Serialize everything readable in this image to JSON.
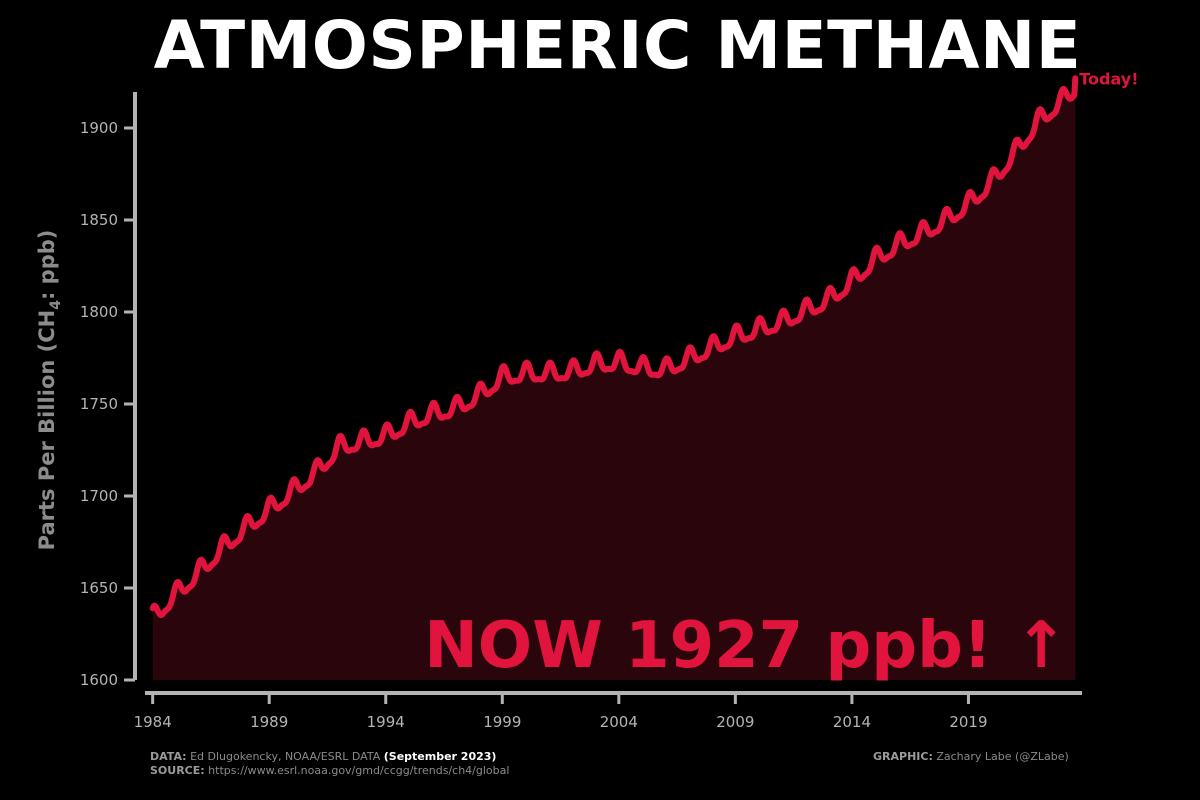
{
  "title": "ATMOSPHERIC METHANE",
  "chart_data": {
    "type": "area",
    "title": "ATMOSPHERIC METHANE",
    "ylabel_main": "Parts Per Billion (CH",
    "ylabel_sub": "4",
    "ylabel_tail": ": ppb)",
    "xlabel": "",
    "xlim": [
      1983.8,
      2023.7
    ],
    "ylim": [
      1600,
      1925
    ],
    "x_ticks": [
      1984,
      1989,
      1994,
      1999,
      2004,
      2009,
      2014,
      2019
    ],
    "y_ticks": [
      1600,
      1650,
      1700,
      1750,
      1800,
      1850,
      1900
    ],
    "grid": false,
    "line_color": "#e0143c",
    "fill_color": "#2a050c",
    "annual_start_values": [
      [
        1984.0,
        1639
      ],
      [
        1985.0,
        1652
      ],
      [
        1986.0,
        1664
      ],
      [
        1987.0,
        1677
      ],
      [
        1988.0,
        1688
      ],
      [
        1989.0,
        1698
      ],
      [
        1990.0,
        1708
      ],
      [
        1991.0,
        1718
      ],
      [
        1992.0,
        1732
      ],
      [
        1993.0,
        1735
      ],
      [
        1994.0,
        1738
      ],
      [
        1995.0,
        1745
      ],
      [
        1996.0,
        1750
      ],
      [
        1997.0,
        1753
      ],
      [
        1998.0,
        1760
      ],
      [
        1999.0,
        1770
      ],
      [
        2000.0,
        1772
      ],
      [
        2001.0,
        1772
      ],
      [
        2002.0,
        1773
      ],
      [
        2003.0,
        1777
      ],
      [
        2004.0,
        1778
      ],
      [
        2005.0,
        1775
      ],
      [
        2006.0,
        1774
      ],
      [
        2007.0,
        1780
      ],
      [
        2008.0,
        1786
      ],
      [
        2009.0,
        1792
      ],
      [
        2010.0,
        1796
      ],
      [
        2011.0,
        1800
      ],
      [
        2012.0,
        1806
      ],
      [
        2013.0,
        1812
      ],
      [
        2014.0,
        1822
      ],
      [
        2015.0,
        1834
      ],
      [
        2016.0,
        1842
      ],
      [
        2017.0,
        1848
      ],
      [
        2018.0,
        1855
      ],
      [
        2019.0,
        1864
      ],
      [
        2020.0,
        1876
      ],
      [
        2021.0,
        1892
      ],
      [
        2022.0,
        1909
      ],
      [
        2023.0,
        1920
      ],
      [
        2023.6,
        1927
      ]
    ],
    "seasonal_amplitude_ppb": 9,
    "end_label": "Today!",
    "annotation": "NOW 1927 ppb! ↑"
  },
  "footer": {
    "data_label": "DATA:",
    "data_text": "Ed Dlugokencky, NOAA/ESRL DATA",
    "data_date": "(September 2023)",
    "source_label": "SOURCE:",
    "source_text": "https://www.esrl.noaa.gov/gmd/ccgg/trends/ch4/global",
    "graphic_label": "GRAPHIC:",
    "graphic_text": "Zachary Labe (@ZLabe)"
  }
}
